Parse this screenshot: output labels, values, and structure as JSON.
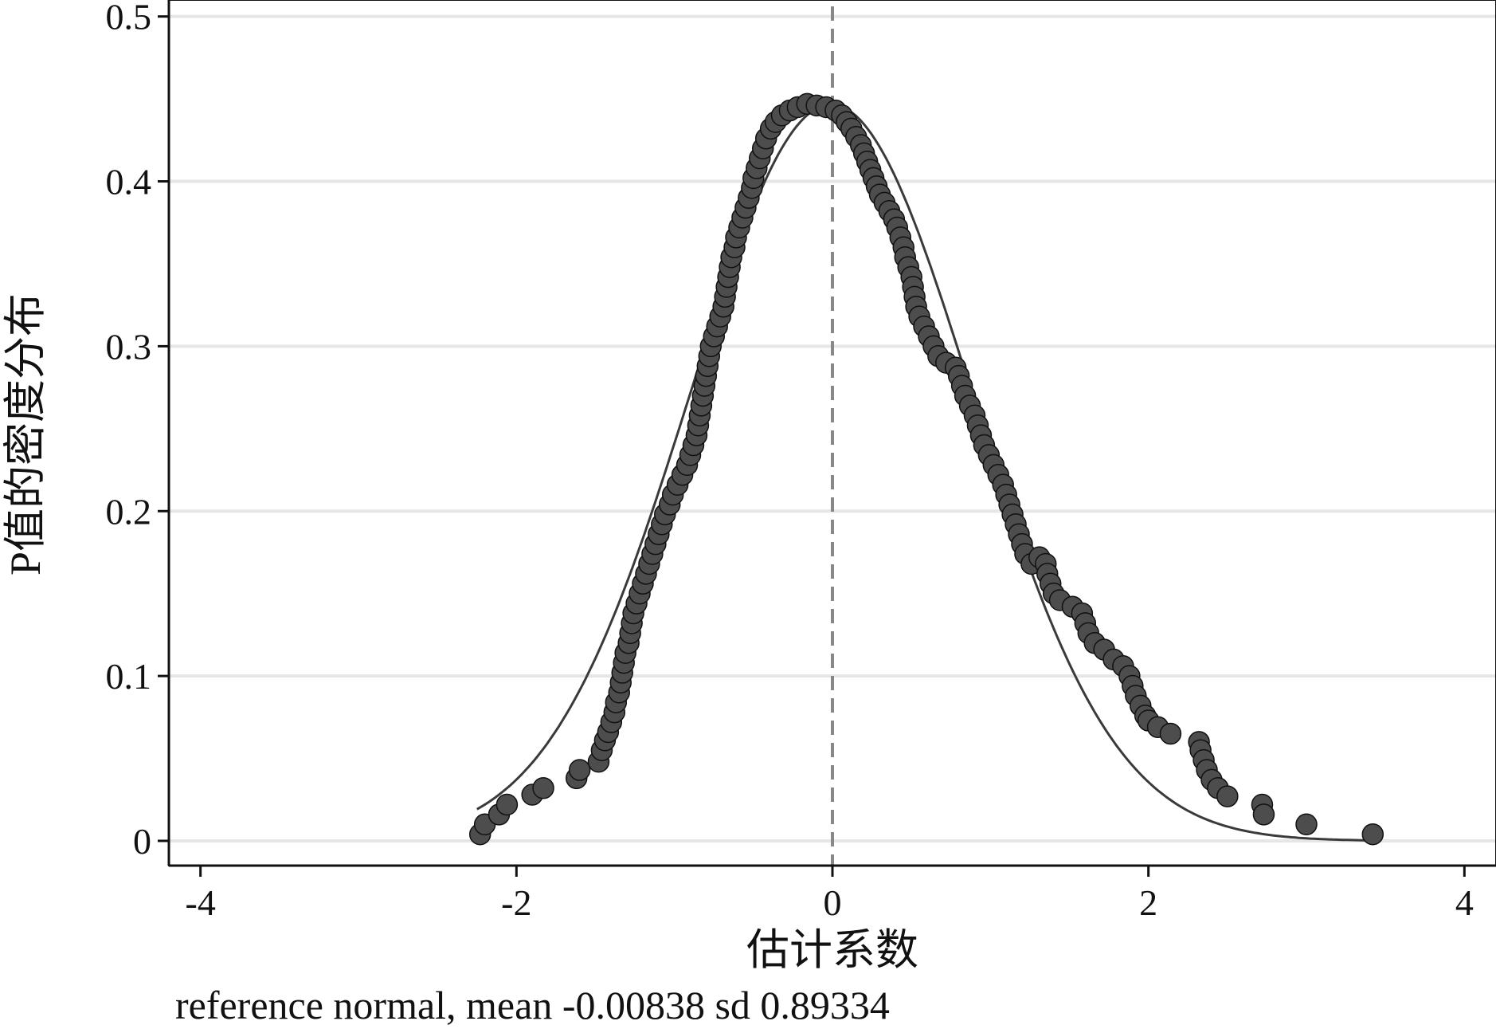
{
  "chart_data": {
    "type": "scatter",
    "xlabel": "估计系数",
    "ylabel": "P值的密度分布",
    "note": "reference normal, mean -0.00838 sd 0.89334",
    "xlim": [
      -4.2,
      4.2
    ],
    "ylim": [
      -0.015,
      0.51
    ],
    "x_ticks": [
      -4,
      -2,
      0,
      2,
      4
    ],
    "x_tick_labels": [
      "-4",
      "-2",
      "0",
      "2",
      "4"
    ],
    "y_ticks": [
      0,
      0.1,
      0.2,
      0.3,
      0.4,
      0.5
    ],
    "y_tick_labels": [
      "0",
      "0.1",
      "0.2",
      "0.3",
      "0.4",
      "0.5"
    ],
    "grid": "horizontal",
    "vline_x": 0,
    "reference": {
      "mean": -0.00838,
      "sd": 0.89334,
      "range": [
        -2.25,
        3.4
      ]
    },
    "point_color": "#4d4d4d",
    "line_color": "#3a3a3a",
    "points": [
      [
        -2.23,
        0.004
      ],
      [
        -2.2,
        0.01
      ],
      [
        -2.11,
        0.016
      ],
      [
        -2.06,
        0.022
      ],
      [
        -1.9,
        0.028
      ],
      [
        -1.83,
        0.032
      ],
      [
        -1.62,
        0.038
      ],
      [
        -1.6,
        0.043
      ],
      [
        -1.48,
        0.048
      ],
      [
        -1.46,
        0.055
      ],
      [
        -1.44,
        0.061
      ],
      [
        -1.42,
        0.066
      ],
      [
        -1.4,
        0.072
      ],
      [
        -1.38,
        0.078
      ],
      [
        -1.37,
        0.084
      ],
      [
        -1.35,
        0.09
      ],
      [
        -1.34,
        0.096
      ],
      [
        -1.33,
        0.102
      ],
      [
        -1.32,
        0.108
      ],
      [
        -1.31,
        0.114
      ],
      [
        -1.29,
        0.12
      ],
      [
        -1.28,
        0.126
      ],
      [
        -1.27,
        0.132
      ],
      [
        -1.26,
        0.138
      ],
      [
        -1.24,
        0.144
      ],
      [
        -1.22,
        0.15
      ],
      [
        -1.2,
        0.156
      ],
      [
        -1.18,
        0.162
      ],
      [
        -1.16,
        0.168
      ],
      [
        -1.14,
        0.174
      ],
      [
        -1.12,
        0.18
      ],
      [
        -1.1,
        0.186
      ],
      [
        -1.08,
        0.192
      ],
      [
        -1.06,
        0.198
      ],
      [
        -1.03,
        0.204
      ],
      [
        -1.01,
        0.21
      ],
      [
        -0.98,
        0.216
      ],
      [
        -0.95,
        0.222
      ],
      [
        -0.92,
        0.228
      ],
      [
        -0.9,
        0.234
      ],
      [
        -0.88,
        0.24
      ],
      [
        -0.86,
        0.246
      ],
      [
        -0.85,
        0.252
      ],
      [
        -0.84,
        0.258
      ],
      [
        -0.83,
        0.264
      ],
      [
        -0.82,
        0.27
      ],
      [
        -0.81,
        0.276
      ],
      [
        -0.8,
        0.282
      ],
      [
        -0.79,
        0.288
      ],
      [
        -0.78,
        0.294
      ],
      [
        -0.77,
        0.3
      ],
      [
        -0.75,
        0.306
      ],
      [
        -0.73,
        0.312
      ],
      [
        -0.71,
        0.318
      ],
      [
        -0.69,
        0.324
      ],
      [
        -0.68,
        0.33
      ],
      [
        -0.67,
        0.336
      ],
      [
        -0.66,
        0.342
      ],
      [
        -0.65,
        0.348
      ],
      [
        -0.64,
        0.354
      ],
      [
        -0.62,
        0.36
      ],
      [
        -0.61,
        0.366
      ],
      [
        -0.59,
        0.372
      ],
      [
        -0.57,
        0.378
      ],
      [
        -0.55,
        0.384
      ],
      [
        -0.53,
        0.39
      ],
      [
        -0.51,
        0.396
      ],
      [
        -0.5,
        0.402
      ],
      [
        -0.48,
        0.408
      ],
      [
        -0.46,
        0.414
      ],
      [
        -0.44,
        0.42
      ],
      [
        -0.42,
        0.426
      ],
      [
        -0.39,
        0.432
      ],
      [
        -0.36,
        0.436
      ],
      [
        -0.32,
        0.44
      ],
      [
        -0.27,
        0.443
      ],
      [
        -0.22,
        0.445
      ],
      [
        -0.16,
        0.447
      ],
      [
        -0.1,
        0.446
      ],
      [
        -0.04,
        0.445
      ],
      [
        0.02,
        0.443
      ],
      [
        0.06,
        0.44
      ],
      [
        0.09,
        0.436
      ],
      [
        0.12,
        0.432
      ],
      [
        0.15,
        0.427
      ],
      [
        0.18,
        0.422
      ],
      [
        0.2,
        0.417
      ],
      [
        0.22,
        0.412
      ],
      [
        0.24,
        0.407
      ],
      [
        0.26,
        0.402
      ],
      [
        0.28,
        0.397
      ],
      [
        0.3,
        0.392
      ],
      [
        0.33,
        0.387
      ],
      [
        0.36,
        0.382
      ],
      [
        0.39,
        0.377
      ],
      [
        0.41,
        0.372
      ],
      [
        0.43,
        0.366
      ],
      [
        0.45,
        0.36
      ],
      [
        0.46,
        0.354
      ],
      [
        0.48,
        0.348
      ],
      [
        0.5,
        0.342
      ],
      [
        0.51,
        0.336
      ],
      [
        0.52,
        0.33
      ],
      [
        0.53,
        0.324
      ],
      [
        0.55,
        0.318
      ],
      [
        0.58,
        0.312
      ],
      [
        0.61,
        0.306
      ],
      [
        0.64,
        0.3
      ],
      [
        0.67,
        0.294
      ],
      [
        0.72,
        0.29
      ],
      [
        0.78,
        0.287
      ],
      [
        0.8,
        0.282
      ],
      [
        0.82,
        0.276
      ],
      [
        0.84,
        0.27
      ],
      [
        0.87,
        0.264
      ],
      [
        0.9,
        0.258
      ],
      [
        0.92,
        0.252
      ],
      [
        0.94,
        0.246
      ],
      [
        0.96,
        0.24
      ],
      [
        0.99,
        0.234
      ],
      [
        1.02,
        0.228
      ],
      [
        1.05,
        0.222
      ],
      [
        1.08,
        0.216
      ],
      [
        1.1,
        0.21
      ],
      [
        1.12,
        0.204
      ],
      [
        1.14,
        0.198
      ],
      [
        1.16,
        0.192
      ],
      [
        1.18,
        0.186
      ],
      [
        1.2,
        0.18
      ],
      [
        1.22,
        0.174
      ],
      [
        1.26,
        0.168
      ],
      [
        1.31,
        0.172
      ],
      [
        1.35,
        0.168
      ],
      [
        1.36,
        0.162
      ],
      [
        1.38,
        0.156
      ],
      [
        1.4,
        0.15
      ],
      [
        1.44,
        0.146
      ],
      [
        1.52,
        0.142
      ],
      [
        1.58,
        0.138
      ],
      [
        1.6,
        0.132
      ],
      [
        1.62,
        0.126
      ],
      [
        1.66,
        0.12
      ],
      [
        1.72,
        0.116
      ],
      [
        1.78,
        0.11
      ],
      [
        1.84,
        0.106
      ],
      [
        1.88,
        0.1
      ],
      [
        1.9,
        0.094
      ],
      [
        1.92,
        0.088
      ],
      [
        1.95,
        0.082
      ],
      [
        1.98,
        0.076
      ],
      [
        2.0,
        0.073
      ],
      [
        2.06,
        0.069
      ],
      [
        2.14,
        0.065
      ],
      [
        2.32,
        0.06
      ],
      [
        2.33,
        0.055
      ],
      [
        2.35,
        0.049
      ],
      [
        2.37,
        0.043
      ],
      [
        2.4,
        0.037
      ],
      [
        2.44,
        0.032
      ],
      [
        2.5,
        0.027
      ],
      [
        2.72,
        0.022
      ],
      [
        2.73,
        0.016
      ],
      [
        3.0,
        0.01
      ],
      [
        3.42,
        0.004
      ]
    ]
  }
}
